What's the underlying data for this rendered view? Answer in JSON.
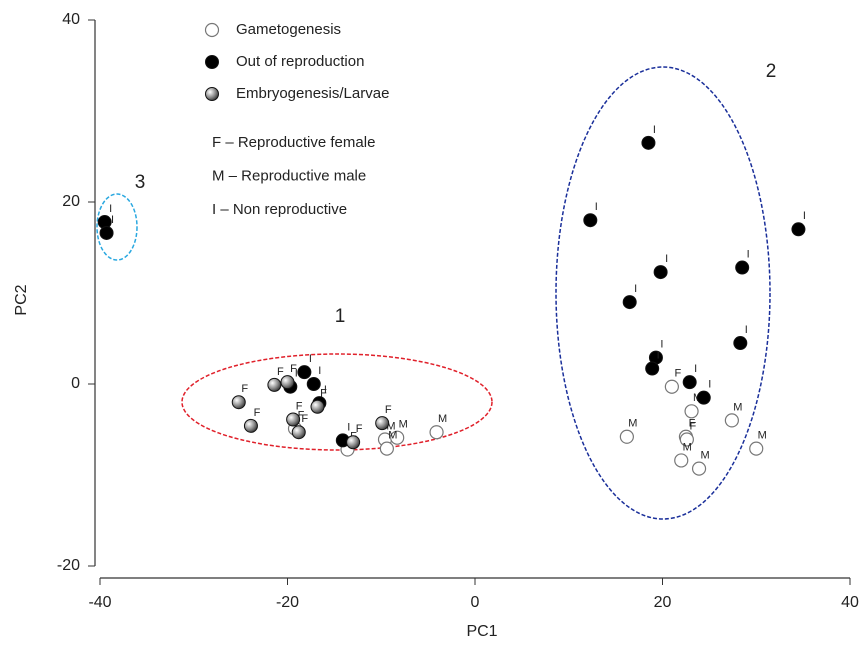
{
  "chart_data": {
    "type": "scatter",
    "xlabel": "PC1",
    "ylabel": "PC2",
    "xlim": [
      -40,
      40
    ],
    "xticks": [
      -40,
      -20,
      0,
      20,
      40
    ],
    "ylim": [
      -20,
      40
    ],
    "yticks": [
      -20,
      0,
      20,
      40
    ],
    "series": [
      {
        "name": "Gametogenesis",
        "color": "#ffffff",
        "x": [
          -13.6,
          -9.6,
          -8.3,
          -9.4,
          -4.1,
          -19.2,
          21,
          23.1,
          16.2,
          22.5,
          22.6,
          27.4,
          30,
          22,
          23.9
        ],
        "values": [
          -7.2,
          -6.1,
          -5.9,
          -7.1,
          -5.3,
          -4.9,
          -0.3,
          -3,
          -5.8,
          -5.8,
          -6.1,
          -4,
          -7.1,
          -8.4,
          -9.3
        ],
        "labels": [
          "F",
          "M",
          "M",
          "M",
          "M",
          "F",
          "F",
          "M",
          "M",
          "F",
          "F",
          "M",
          "M",
          "M",
          "M"
        ]
      },
      {
        "name": "Out of reproduction",
        "color": "#000000",
        "x": [
          -39.5,
          -39.3,
          18.5,
          12.3,
          34.5,
          19.8,
          28.5,
          16.5,
          28.3,
          19.3,
          18.9,
          22.9,
          24.4,
          -18.2,
          -19.7,
          -17.2,
          -16.6,
          -14.1
        ],
        "values": [
          17.8,
          16.6,
          26.5,
          18,
          17,
          12.3,
          12.8,
          9,
          4.5,
          2.9,
          1.7,
          0.2,
          -1.5,
          1.3,
          -0.3,
          0,
          -2.1,
          -6.2
        ],
        "labels": [
          "I",
          "I",
          "I",
          "I",
          "I",
          "I",
          "I",
          "I",
          "I",
          "I",
          "I",
          "I",
          "I",
          "I",
          "I",
          "I",
          "I",
          "I"
        ]
      },
      {
        "name": "Embryogenesis/Larvae",
        "color": "#8a8a8a",
        "x": [
          -21.4,
          -20,
          -25.2,
          -23.9,
          -19.4,
          -18.8,
          -16.8,
          -13,
          -9.9
        ],
        "values": [
          -0.1,
          0.2,
          -2,
          -4.6,
          -3.9,
          -5.3,
          -2.5,
          -6.4,
          -4.3
        ],
        "labels": [
          "F",
          "F",
          "F",
          "F",
          "F",
          "F",
          "F",
          "F",
          "F"
        ]
      }
    ],
    "notes": [
      "F – Reproductive female",
      "M – Reproductive male",
      "I – Non reproductive"
    ],
    "clusters": [
      {
        "label": "1",
        "color": "#e0202a"
      },
      {
        "label": "2",
        "color": "#1a2f9a"
      },
      {
        "label": "3",
        "color": "#2aa8e0"
      }
    ]
  }
}
